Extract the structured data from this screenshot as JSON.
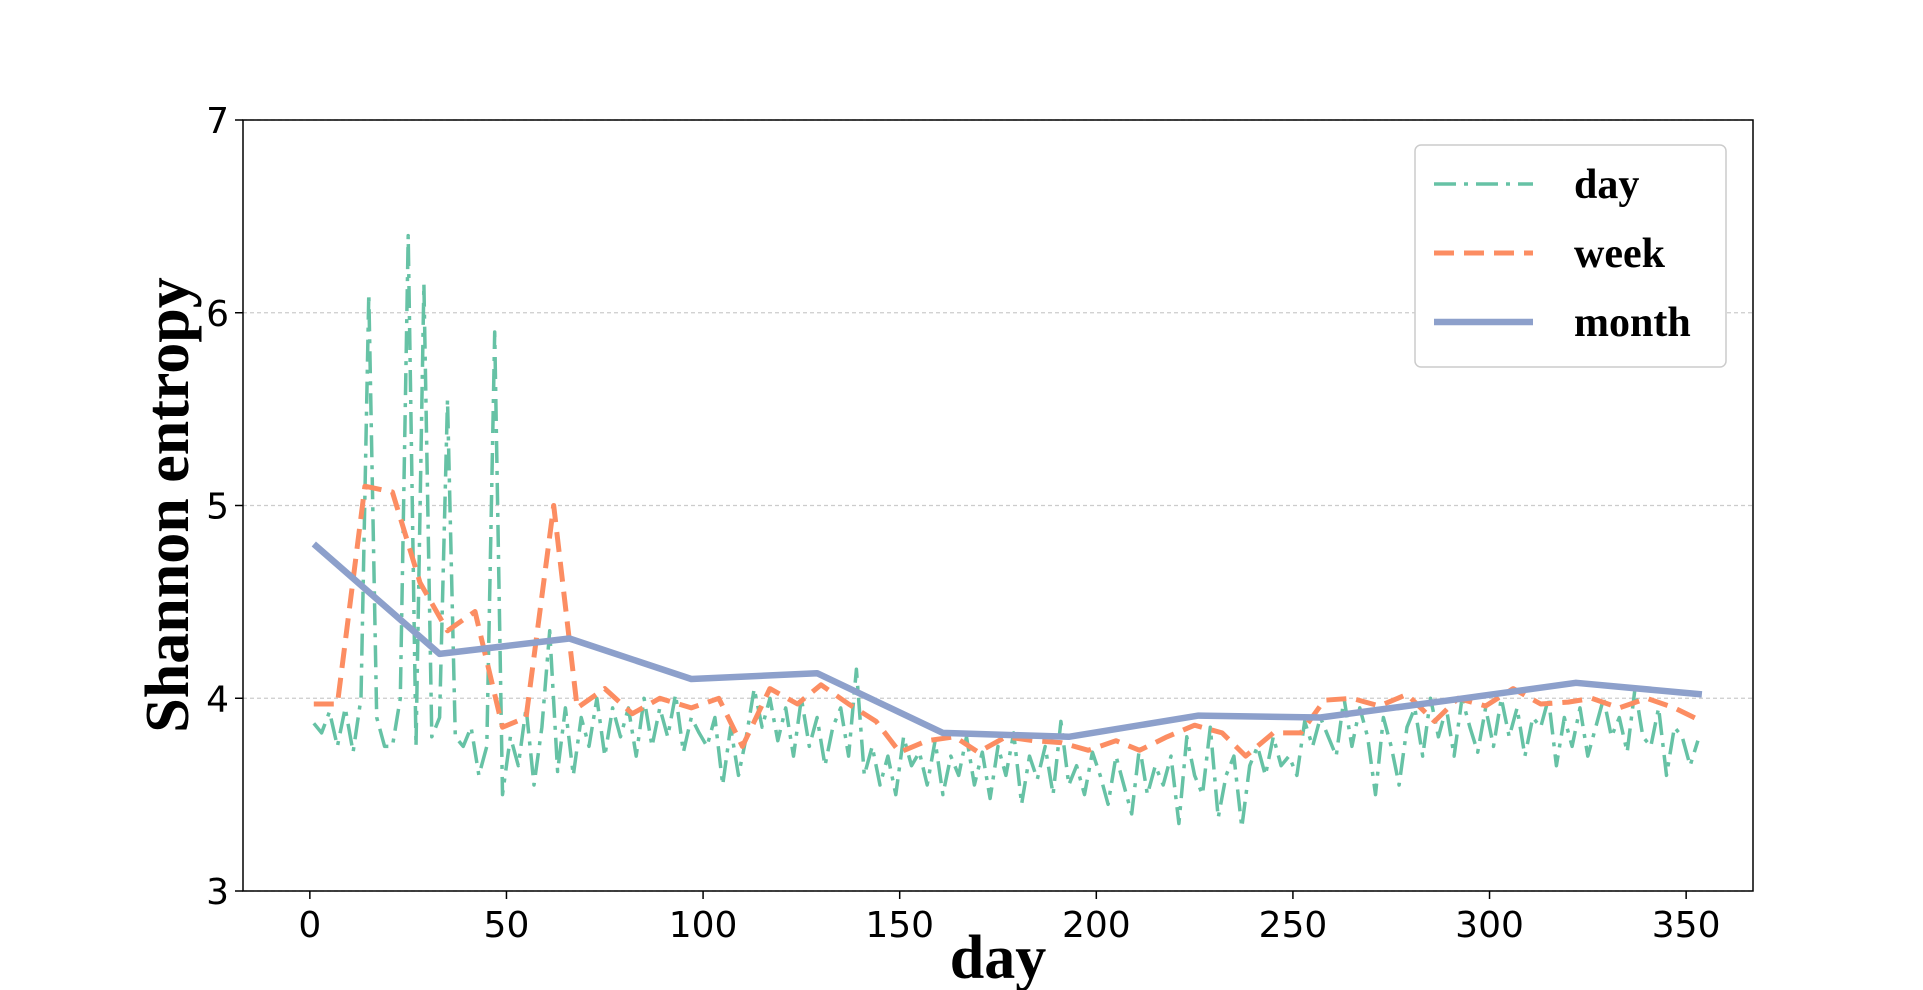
{
  "chart_data": {
    "type": "line",
    "xlabel": "day",
    "ylabel": "Shannon entropy",
    "xlim": [
      -17,
      367
    ],
    "ylim": [
      3,
      7
    ],
    "xticks": [
      0,
      50,
      100,
      150,
      200,
      250,
      300,
      350
    ],
    "yticks": [
      3,
      4,
      5,
      6,
      7
    ],
    "grid": true,
    "legend": "upper right",
    "series": [
      {
        "name": "day",
        "color": "#66c2a5",
        "style": "dashdot",
        "x": [
          1,
          3,
          5,
          7,
          9,
          11,
          13,
          15,
          17,
          19,
          21,
          23,
          25,
          27,
          29,
          31,
          33,
          35,
          37,
          39,
          41,
          43,
          45,
          47,
          49,
          51,
          53,
          55,
          57,
          59,
          61,
          63,
          65,
          67,
          69,
          71,
          73,
          75,
          77,
          79,
          81,
          83,
          85,
          87,
          89,
          91,
          93,
          95,
          97,
          99,
          101,
          103,
          105,
          107,
          109,
          111,
          113,
          115,
          117,
          119,
          121,
          123,
          125,
          127,
          129,
          131,
          133,
          135,
          137,
          139,
          141,
          143,
          145,
          147,
          149,
          151,
          153,
          155,
          157,
          159,
          161,
          163,
          165,
          167,
          169,
          171,
          173,
          175,
          177,
          179,
          181,
          183,
          185,
          187,
          189,
          191,
          193,
          195,
          197,
          199,
          201,
          203,
          205,
          207,
          209,
          211,
          213,
          215,
          217,
          219,
          221,
          223,
          225,
          227,
          229,
          231,
          233,
          235,
          237,
          239,
          241,
          243,
          245,
          247,
          249,
          251,
          253,
          255,
          257,
          259,
          261,
          263,
          265,
          267,
          269,
          271,
          273,
          275,
          277,
          279,
          281,
          283,
          285,
          287,
          289,
          291,
          293,
          295,
          297,
          299,
          301,
          303,
          305,
          307,
          309,
          311,
          313,
          315,
          317,
          319,
          321,
          323,
          325,
          327,
          329,
          331,
          333,
          335,
          337,
          339,
          341,
          343,
          345,
          347,
          349,
          351,
          353
        ],
        "values": [
          3.87,
          3.82,
          3.93,
          3.75,
          3.95,
          3.72,
          4.0,
          6.1,
          3.9,
          3.75,
          3.75,
          4.0,
          6.4,
          3.75,
          6.15,
          3.8,
          3.9,
          5.55,
          3.8,
          3.75,
          3.85,
          3.6,
          3.75,
          5.9,
          3.5,
          3.8,
          3.65,
          3.95,
          3.55,
          3.85,
          4.35,
          3.62,
          3.95,
          3.6,
          3.9,
          3.75,
          4.0,
          3.7,
          3.95,
          3.8,
          3.95,
          3.7,
          4.0,
          3.75,
          3.95,
          3.8,
          4.02,
          3.72,
          3.9,
          3.82,
          3.75,
          3.9,
          3.55,
          3.85,
          3.6,
          3.8,
          4.05,
          3.85,
          4.0,
          3.78,
          3.95,
          3.7,
          4.0,
          3.75,
          3.9,
          3.65,
          3.85,
          3.95,
          3.7,
          4.15,
          3.6,
          3.75,
          3.55,
          3.7,
          3.5,
          3.8,
          3.65,
          3.72,
          3.55,
          3.78,
          3.5,
          3.7,
          3.6,
          3.8,
          3.55,
          3.72,
          3.48,
          3.75,
          3.6,
          3.82,
          3.45,
          3.7,
          3.58,
          3.75,
          3.5,
          3.88,
          3.55,
          3.65,
          3.5,
          3.72,
          3.6,
          3.45,
          3.7,
          3.55,
          3.4,
          3.75,
          3.5,
          3.65,
          3.55,
          3.7,
          3.35,
          3.8,
          3.6,
          3.5,
          3.85,
          3.38,
          3.6,
          3.7,
          3.33,
          3.65,
          3.75,
          3.6,
          3.8,
          3.65,
          3.7,
          3.6,
          3.88,
          3.75,
          3.9,
          3.8,
          3.7,
          4.0,
          3.75,
          3.95,
          3.8,
          3.5,
          3.9,
          3.75,
          3.55,
          3.85,
          3.95,
          3.7,
          4.0,
          3.8,
          3.95,
          3.7,
          4.0,
          3.85,
          3.72,
          3.95,
          3.75,
          4.0,
          3.8,
          3.95,
          3.7,
          3.9,
          3.85,
          4.0,
          3.65,
          3.9,
          3.75,
          3.95,
          3.7,
          3.85,
          4.0,
          3.8,
          3.9,
          3.72,
          4.05,
          3.8,
          3.75,
          3.95,
          3.6,
          3.85,
          3.8,
          3.65,
          3.78
        ]
      },
      {
        "name": "week",
        "color": "#fc8d62",
        "style": "dashed",
        "x": [
          1,
          7,
          14,
          21,
          28,
          35,
          42,
          49,
          55,
          62,
          68,
          75,
          82,
          89,
          97,
          104,
          110,
          117,
          124,
          130,
          137,
          144,
          150,
          157,
          164,
          170,
          177,
          184,
          191,
          198,
          205,
          211,
          218,
          225,
          232,
          238,
          245,
          252,
          258,
          265,
          272,
          279,
          286,
          292,
          299,
          306,
          313,
          320,
          326,
          333,
          340,
          347,
          354
        ],
        "values": [
          3.97,
          3.97,
          5.1,
          5.07,
          4.6,
          4.35,
          4.45,
          3.85,
          3.9,
          5.0,
          3.95,
          4.05,
          3.92,
          4.0,
          3.95,
          4.0,
          3.75,
          4.05,
          3.97,
          4.07,
          3.97,
          3.88,
          3.72,
          3.78,
          3.8,
          3.72,
          3.8,
          3.78,
          3.77,
          3.73,
          3.78,
          3.73,
          3.8,
          3.86,
          3.82,
          3.7,
          3.82,
          3.82,
          3.99,
          4.0,
          3.96,
          4.02,
          3.88,
          4.0,
          3.96,
          4.05,
          3.97,
          3.98,
          4.0,
          3.95,
          4.0,
          3.95,
          3.88
        ]
      },
      {
        "name": "month",
        "color": "#8da0cb",
        "style": "solid",
        "x": [
          1,
          33,
          66,
          97,
          129,
          161,
          193,
          226,
          257,
          290,
          322,
          354
        ],
        "values": [
          4.8,
          4.23,
          4.31,
          4.1,
          4.13,
          3.82,
          3.8,
          3.91,
          3.9,
          3.99,
          4.08,
          4.02
        ]
      }
    ]
  }
}
